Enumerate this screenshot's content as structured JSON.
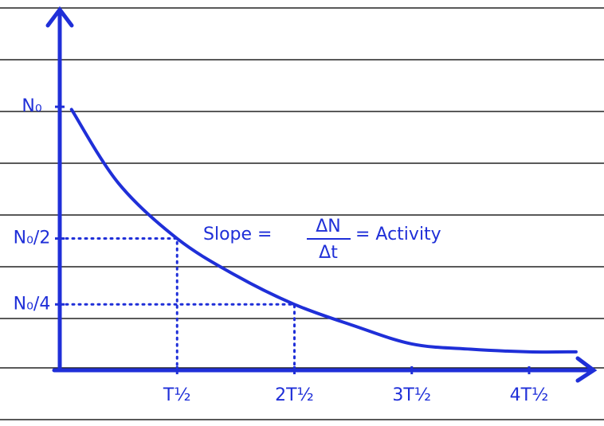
{
  "chart_data": {
    "type": "line",
    "x": [
      0.1,
      0.5,
      1,
      1.5,
      2,
      2.5,
      3,
      3.5,
      4,
      4.4
    ],
    "series": [
      {
        "color": "#1f2fd8",
        "values": [
          0.99,
          0.71,
          0.5,
          0.36,
          0.25,
          0.17,
          0.1,
          0.08,
          0.07,
          0.07
        ]
      }
    ],
    "xlim": [
      0,
      4.55
    ],
    "ylim": [
      0,
      1.36
    ],
    "xticks": [
      {
        "value": 1,
        "label": "T½"
      },
      {
        "value": 2,
        "label": "2T½"
      },
      {
        "value": 3,
        "label": "3T½"
      },
      {
        "value": 4,
        "label": "4T½"
      }
    ],
    "yticks": [
      {
        "value": 0.25,
        "label": "N₀/4"
      },
      {
        "value": 0.5,
        "label": "N₀/2"
      },
      {
        "value": 1,
        "label": "N₀"
      }
    ],
    "guides": [
      1,
      2
    ],
    "annotation": {
      "lhs": "Slope =",
      "numerator": "ΔN",
      "denominator": "Δt",
      "rhs": "= Activity"
    }
  }
}
